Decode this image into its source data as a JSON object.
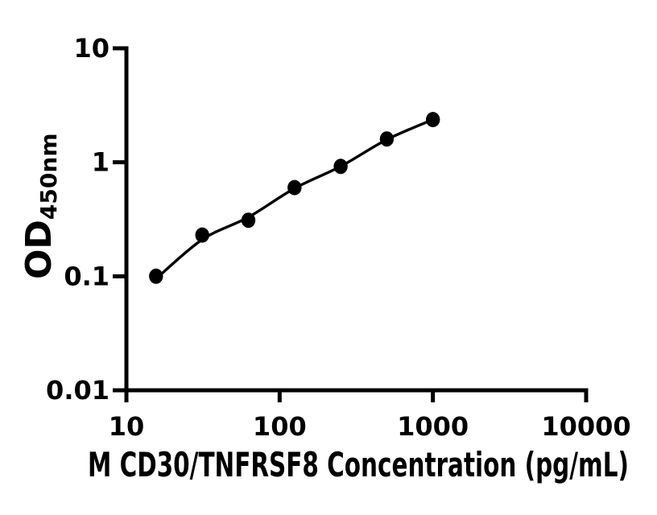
{
  "chart_data": {
    "type": "scatter",
    "title": "",
    "xlabel": "M CD30/TNFRSF8 Concentration (pg/mL)",
    "ylabel_main": "OD",
    "ylabel_sub": "450nm",
    "x_scale": "log",
    "y_scale": "log",
    "xlim": [
      10,
      10000
    ],
    "ylim": [
      0.01,
      10
    ],
    "x_ticks": [
      "10",
      "100",
      "1000",
      "10000"
    ],
    "y_ticks": [
      "10",
      "1",
      "0.1",
      "0.01"
    ],
    "grid": false,
    "legend": false,
    "background": "#ffffff",
    "axis_color": "#000000",
    "marker_color": "#000000",
    "line_color": "#000000",
    "points": [
      {
        "x": 15.6,
        "y": 0.1
      },
      {
        "x": 31.25,
        "y": 0.23
      },
      {
        "x": 62.5,
        "y": 0.31
      },
      {
        "x": 125,
        "y": 0.6
      },
      {
        "x": 250,
        "y": 0.92
      },
      {
        "x": 500,
        "y": 1.6
      },
      {
        "x": 1000,
        "y": 2.37
      }
    ],
    "fit_line": {
      "x": [
        15.6,
        31.25,
        62.5,
        125,
        250,
        500,
        1000
      ],
      "y": [
        0.095,
        0.21,
        0.33,
        0.59,
        0.92,
        1.58,
        2.37
      ]
    }
  }
}
